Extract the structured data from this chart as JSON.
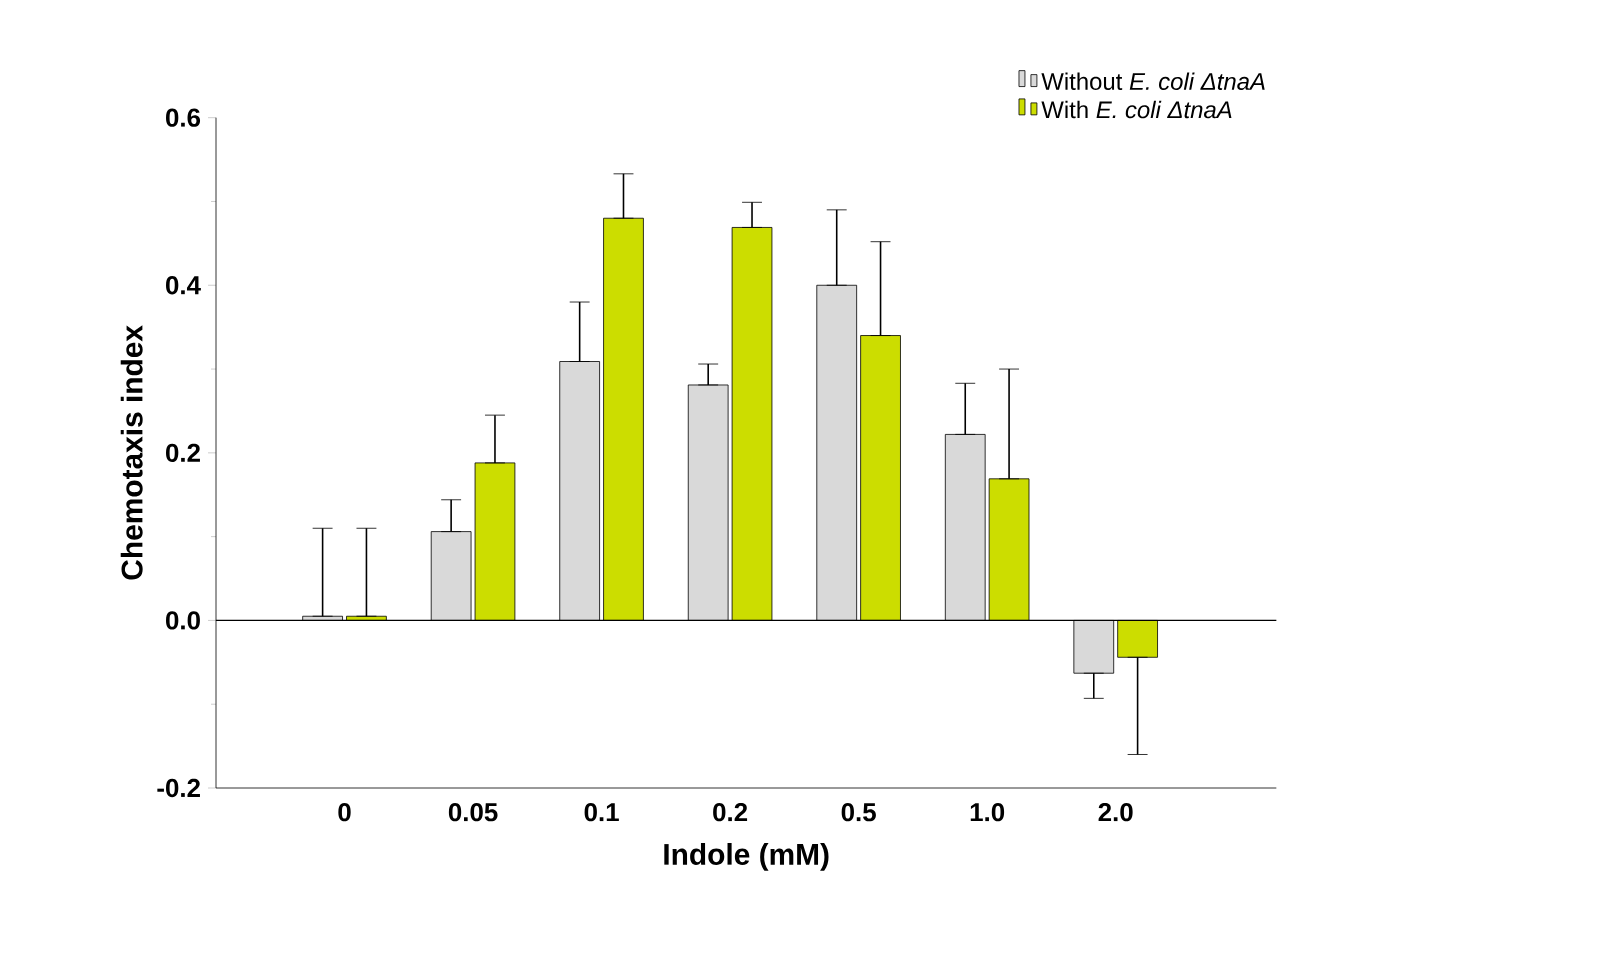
{
  "chart_data": {
    "type": "bar",
    "xlabel": "Indole (mM)",
    "ylabel": "Chemotaxis index",
    "categories": [
      "0",
      "0.05",
      "0.1",
      "0.2",
      "0.5",
      "1.0",
      "2.0"
    ],
    "series": [
      {
        "name": "Without *E. coli ΔtnaA*",
        "color": "#d9d9d9",
        "values": [
          0.005,
          0.106,
          0.309,
          0.281,
          0.4,
          0.222,
          -0.063
        ],
        "errors": [
          [
            0.005,
            0.11
          ],
          [
            0.106,
            0.144
          ],
          [
            0.309,
            0.38
          ],
          [
            0.281,
            0.306
          ],
          [
            0.4,
            0.49
          ],
          [
            0.222,
            0.283
          ],
          [
            -0.093,
            -0.063
          ]
        ]
      },
      {
        "name": "With *E. coli ΔtnaA*",
        "color": "#ccdd00",
        "values": [
          0.005,
          0.188,
          0.48,
          0.469,
          0.34,
          0.169,
          -0.044
        ],
        "errors": [
          [
            0.005,
            0.11
          ],
          [
            0.188,
            0.245
          ],
          [
            0.48,
            0.533
          ],
          [
            0.469,
            0.499
          ],
          [
            0.34,
            0.452
          ],
          [
            0.169,
            0.3
          ],
          [
            -0.16,
            -0.044
          ]
        ]
      }
    ],
    "ylim": [
      -0.2,
      0.6
    ],
    "yticks": [
      -0.2,
      {
        "value": 0,
        "label": "0.0"
      },
      0.2,
      0.4,
      0.6
    ],
    "ref_lines": [
      {
        "axis": "y",
        "value": 0
      }
    ],
    "legend": "top right",
    "grid": false
  }
}
